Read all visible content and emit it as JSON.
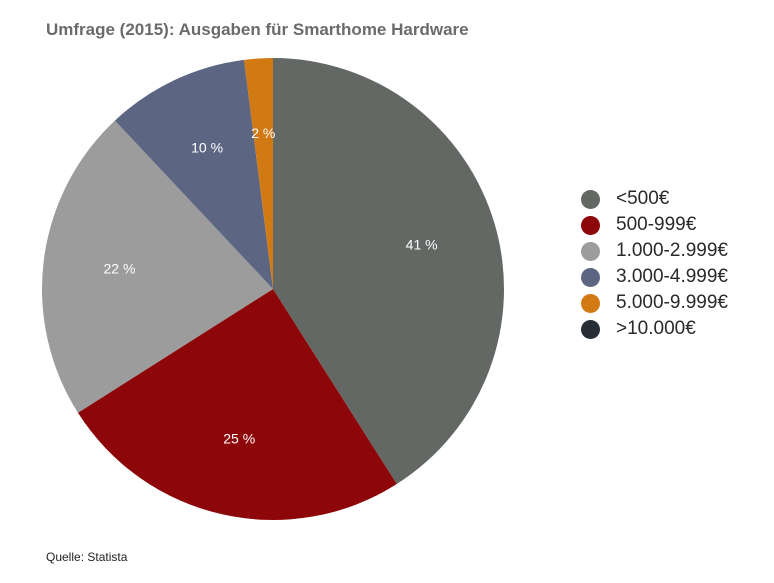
{
  "chart_data": {
    "type": "pie",
    "title": "Umfrage (2015): Ausgaben für Smarthome Hardware",
    "categories": [
      "<500€",
      "500-999€",
      "1.000-2.999€",
      "3.000-4.999€",
      "5.000-9.999€",
      ">10.000€"
    ],
    "values": [
      41,
      25,
      22,
      10,
      2,
      0
    ],
    "value_labels": [
      "41 %",
      "25 %",
      "22 %",
      "10 %",
      "2 %",
      ""
    ],
    "colors": [
      "#636864",
      "#8d0609",
      "#9c9c9c",
      "#5c6683",
      "#d17a14",
      "#262d36"
    ],
    "legend_position": "right",
    "source": "Quelle: Statista"
  }
}
